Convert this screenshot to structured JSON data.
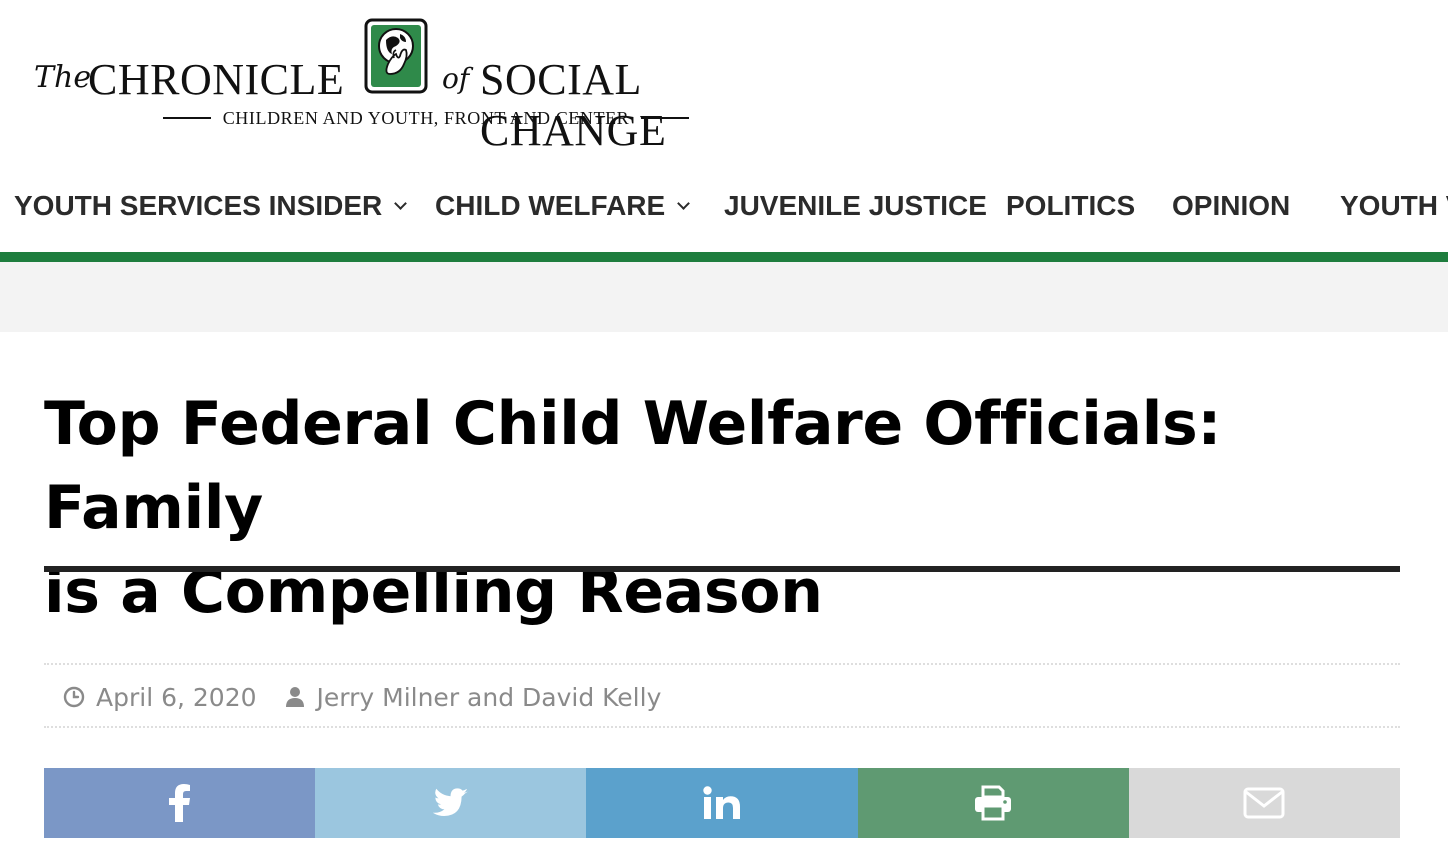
{
  "site": {
    "logo": {
      "the": "The",
      "chronicle": "CHRONICLE",
      "of": "of",
      "social_change": "SOCIAL CHANGE",
      "tagline": "CHILDREN AND YOUTH, FRONT AND CENTER"
    },
    "colors": {
      "brand_green": "#1e7d3e",
      "nav_text": "#2b2b2b",
      "meta_text": "#8a8a8a"
    }
  },
  "nav": {
    "items": [
      {
        "label": "YOUTH SERVICES INSIDER",
        "has_dropdown": true
      },
      {
        "label": "CHILD WELFARE",
        "has_dropdown": true
      },
      {
        "label": "JUVENILE JUSTICE",
        "has_dropdown": false
      },
      {
        "label": "POLITICS",
        "has_dropdown": false
      },
      {
        "label": "OPINION",
        "has_dropdown": false
      },
      {
        "label": "YOUTH V",
        "has_dropdown": false
      }
    ]
  },
  "article": {
    "title_line1": "Top Federal Child Welfare Officials: Family",
    "title_line2": "is a Compelling Reason",
    "date": "April 6, 2020",
    "author": "Jerry Milner and David Kelly"
  },
  "share": {
    "buttons": [
      {
        "network": "facebook",
        "icon": "facebook-icon",
        "color": "#7b97c6"
      },
      {
        "network": "twitter",
        "icon": "twitter-icon",
        "color": "#9bc6df"
      },
      {
        "network": "linkedin",
        "icon": "linkedin-icon",
        "color": "#5ba1cc"
      },
      {
        "network": "print",
        "icon": "print-icon",
        "color": "#5f9a72"
      },
      {
        "network": "email",
        "icon": "email-icon",
        "color": "#d9d9d9"
      }
    ]
  }
}
